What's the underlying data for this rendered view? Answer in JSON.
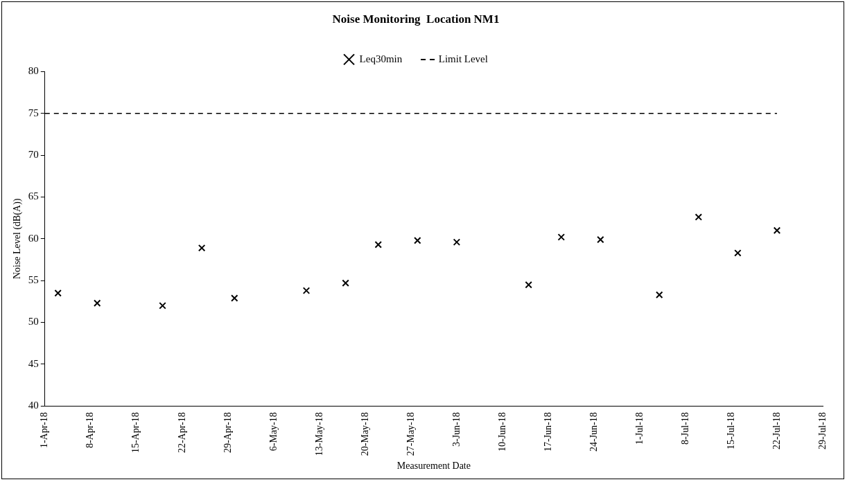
{
  "chart_data": {
    "type": "scatter",
    "title": "Noise Monitoring  Location NM1",
    "xlabel": "Measurement Date",
    "ylabel": "Noise Level (dB(A))",
    "x": [
      "--04-03",
      "--04-09",
      "--04-19",
      "--04-25",
      "--04-30",
      "--05-11",
      "--05-17",
      "--05-22",
      "--05-28",
      "--06-03",
      "--06-14",
      "--06-19",
      "--06-25",
      "--07-04",
      "--07-10",
      "--07-16",
      "--07-22"
    ],
    "series": [
      {
        "name": "Leq30min",
        "color": "#000000",
        "marker": "cross",
        "values": [
          53.5,
          52.3,
          52.0,
          58.9,
          52.9,
          53.8,
          54.7,
          59.3,
          59.8,
          59.6,
          54.5,
          60.2,
          59.9,
          53.3,
          62.6,
          58.3,
          61.0
        ]
      },
      {
        "name": "Limit Level",
        "type": "line",
        "color": "#000000",
        "line_style": "dashed",
        "marker": "none",
        "x": [
          "--04-01",
          "--07-22"
        ],
        "values": [
          75,
          75
        ]
      }
    ],
    "xlim": [
      "--04-01",
      "--07-29"
    ],
    "xticks": [
      {
        "value": "--04-01",
        "label": "1-Apr-18"
      },
      {
        "value": "--04-08",
        "label": "8-Apr-18"
      },
      {
        "value": "--04-15",
        "label": "15-Apr-18"
      },
      {
        "value": "--04-22",
        "label": "22-Apr-18"
      },
      {
        "value": "--04-29",
        "label": "29-Apr-18"
      },
      {
        "value": "--05-06",
        "label": "6-May-18"
      },
      {
        "value": "--05-13",
        "label": "13-May-18"
      },
      {
        "value": "--05-20",
        "label": "20-May-18"
      },
      {
        "value": "--05-27",
        "label": "27-May-18"
      },
      {
        "value": "--06-03",
        "label": "3-Jun-18"
      },
      {
        "value": "--06-10",
        "label": "10-Jun-18"
      },
      {
        "value": "--06-17",
        "label": "17-Jun-18"
      },
      {
        "value": "--06-24",
        "label": "24-Jun-18"
      },
      {
        "value": "--07-01",
        "label": "1-Jul-18"
      },
      {
        "value": "--07-08",
        "label": "8-Jul-18"
      },
      {
        "value": "--07-15",
        "label": "15-Jul-18"
      },
      {
        "value": "--07-22",
        "label": "22-Jul-18"
      },
      {
        "value": "--07-29",
        "label": "29-Jul-18"
      }
    ],
    "ylim": [
      40,
      80
    ],
    "yticks": [
      40,
      45,
      50,
      55,
      60,
      65,
      70,
      75,
      80
    ],
    "grid": false,
    "legend": "top"
  }
}
